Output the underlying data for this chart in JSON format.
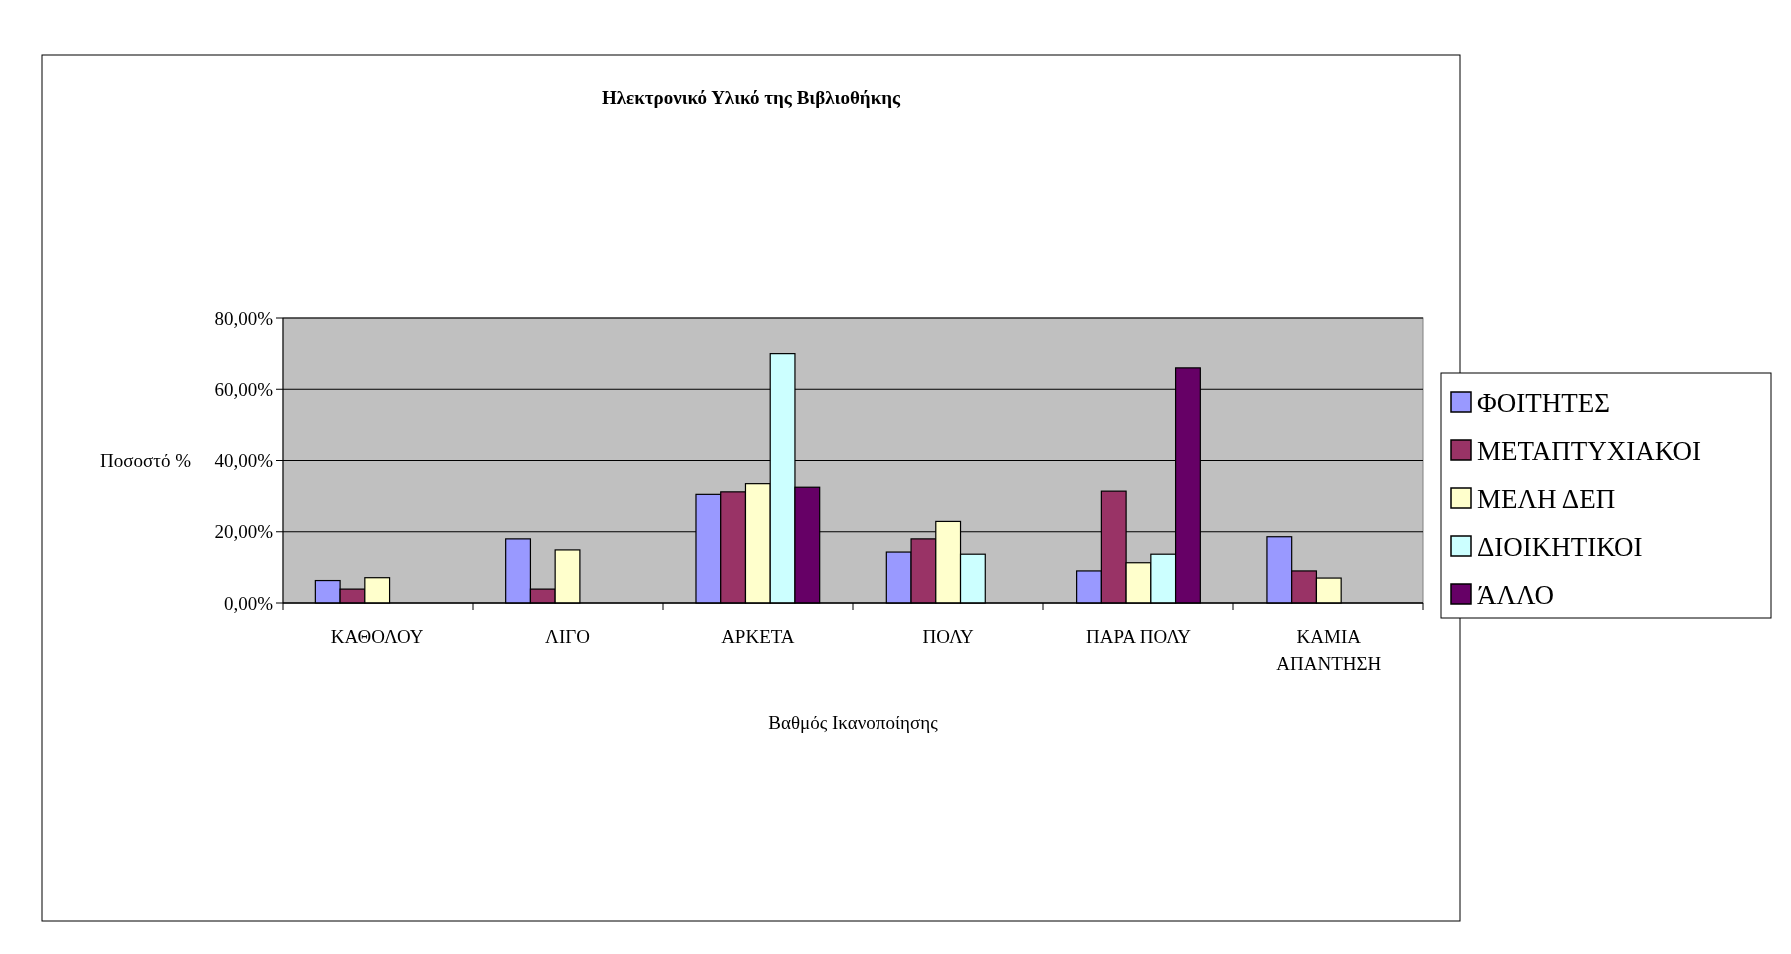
{
  "chart_data": {
    "type": "bar",
    "title": "Ηλεκτρονικό Υλικό της Βιβλιοθήκης",
    "xlabel": "Βαθμός Ικανοποίησης",
    "ylabel": "Ποσοστό %",
    "categories": [
      "ΚΑΘΟΛΟΥ",
      "ΛΙΓΟ",
      "ΑΡΚΕΤΑ",
      "ΠΟΛΥ",
      "ΠΑΡΑ ΠΟΛΥ",
      "ΚΑΜΙΑ ΑΠΑΝΤΗΣΗ"
    ],
    "series": [
      {
        "name": "ΦΟΙΤΗΤΕΣ",
        "color": "#9999ff",
        "values": [
          6.3,
          18.0,
          30.5,
          14.3,
          9.0,
          18.6
        ]
      },
      {
        "name": "ΜΕΤΑΠΤΥΧΙΑΚΟΙ",
        "color": "#993366",
        "values": [
          3.9,
          3.9,
          31.2,
          18.0,
          31.4,
          9.0
        ]
      },
      {
        "name": "ΜΕΛΗ ΔΕΠ",
        "color": "#ffffcc",
        "values": [
          7.1,
          14.9,
          33.5,
          22.9,
          11.3,
          7.0
        ]
      },
      {
        "name": "ΔΙΟΙΚΗΤΙΚΟΙ",
        "color": "#ccffff",
        "values": [
          0,
          0,
          70.0,
          13.7,
          13.7,
          0
        ]
      },
      {
        "name": "ΆΛΛΟ",
        "color": "#660066",
        "values": [
          0,
          0,
          32.5,
          0,
          66.0,
          0
        ]
      }
    ],
    "ylim": [
      0,
      80
    ],
    "yticks": [
      {
        "value": 0,
        "label": "0,00%"
      },
      {
        "value": 20,
        "label": "20,00%"
      },
      {
        "value": 40,
        "label": "40,00%"
      },
      {
        "value": 60,
        "label": "60,00%"
      },
      {
        "value": 80,
        "label": "80,00%"
      }
    ],
    "grid": "y",
    "legend": "right"
  }
}
